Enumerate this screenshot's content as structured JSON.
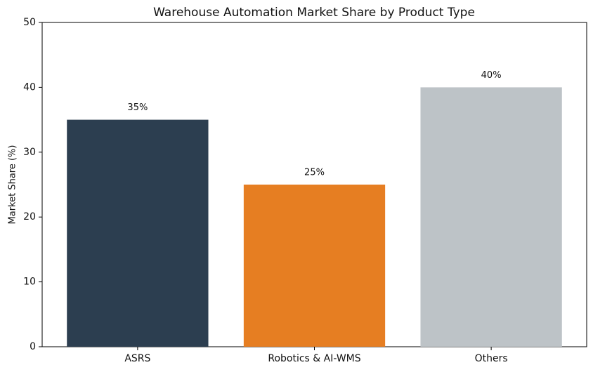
{
  "chart_data": {
    "type": "bar",
    "title": "Warehouse Automation Market Share by Product Type",
    "y_label": "Market Share (%)",
    "categories": [
      "ASRS",
      "Robotics & AI-WMS",
      "Others"
    ],
    "values": [
      35,
      25,
      40
    ],
    "value_labels": [
      "35%",
      "25%",
      "40%"
    ],
    "colors": [
      "#2c3e50",
      "#e67e22",
      "#bdc3c7"
    ],
    "ylim": [
      0,
      50
    ],
    "yticks": [
      0,
      10,
      20,
      30,
      40,
      50
    ],
    "grid": false
  }
}
